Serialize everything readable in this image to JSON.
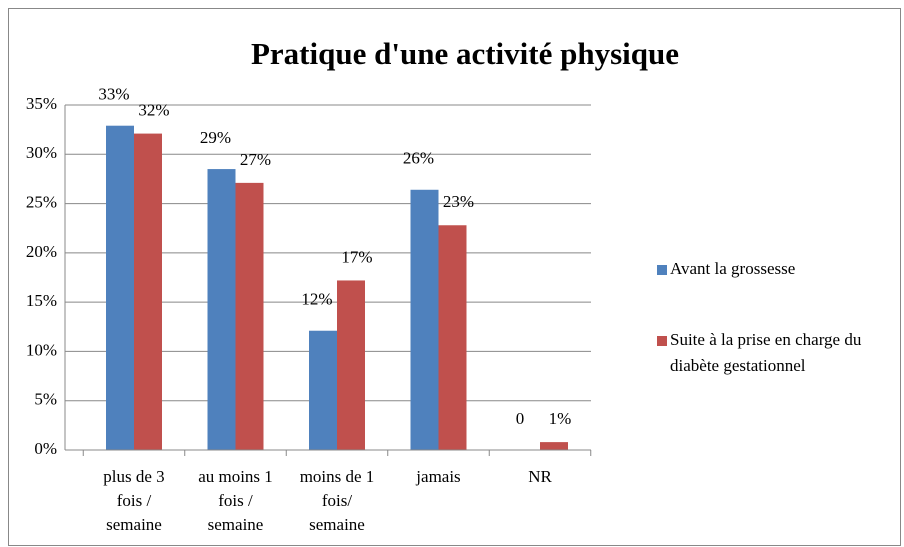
{
  "chart_data": {
    "type": "bar",
    "title": "Pratique d'une activité physique",
    "categories": [
      "plus de 3\nfois /\nsemaine",
      "au moins 1\nfois /\nsemaine",
      "moins de 1\nfois/\nsemaine",
      "jamais",
      "NR"
    ],
    "series": [
      {
        "name": "Avant la grossesse",
        "color": "#4f81bd",
        "values": [
          32.9,
          28.5,
          12.1,
          26.4,
          0
        ],
        "value_labels": [
          "33%",
          "29%",
          "12%",
          "26%",
          "0"
        ]
      },
      {
        "name": "Suite à la prise en charge du\ndiabète gestationnel",
        "color": "#c0504d",
        "values": [
          32.1,
          27.1,
          17.2,
          22.8,
          0.8
        ],
        "value_labels": [
          "32%",
          "27%",
          "17%",
          "23%",
          "1%"
        ]
      }
    ],
    "ylim": [
      0,
      35
    ],
    "yticks": [
      {
        "value": 0,
        "label": "0%"
      },
      {
        "value": 5,
        "label": "5%"
      },
      {
        "value": 10,
        "label": "10%"
      },
      {
        "value": 15,
        "label": "15%"
      },
      {
        "value": 20,
        "label": "20%"
      },
      {
        "value": 25,
        "label": "25%"
      },
      {
        "value": 30,
        "label": "30%"
      },
      {
        "value": 35,
        "label": "35%"
      }
    ],
    "grid": true,
    "legend": "right"
  }
}
